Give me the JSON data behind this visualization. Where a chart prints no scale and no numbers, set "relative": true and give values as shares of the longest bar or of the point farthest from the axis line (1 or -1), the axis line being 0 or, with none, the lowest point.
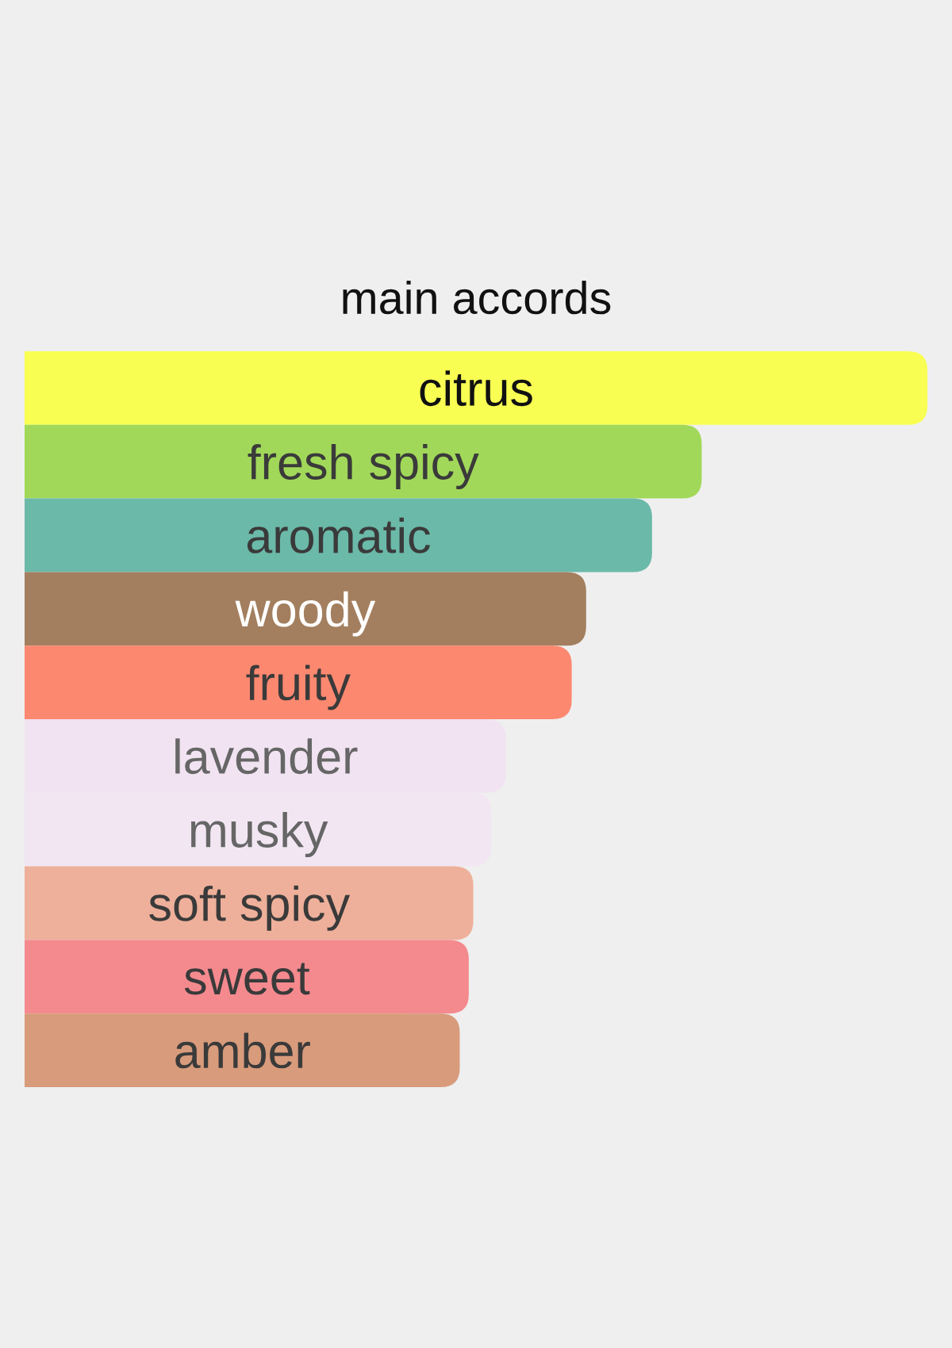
{
  "chart_data": {
    "type": "bar",
    "orientation": "horizontal",
    "relative": true,
    "title": "main accords",
    "categories": [
      "citrus",
      "fresh spicy",
      "aromatic",
      "woody",
      "fruity",
      "lavender",
      "musky",
      "soft spicy",
      "sweet",
      "amber"
    ],
    "values": [
      1,
      0.75,
      0.695,
      0.622,
      0.606,
      0.533,
      0.517,
      0.497,
      0.492,
      0.482
    ],
    "colors": [
      "#f9ff52",
      "#a1d859",
      "#6bb9a9",
      "#a37f5f",
      "#fd8870",
      "#f1e3f2",
      "#f2e6f3",
      "#eeb09a",
      "#f48a8e",
      "#d89b7b"
    ]
  }
}
